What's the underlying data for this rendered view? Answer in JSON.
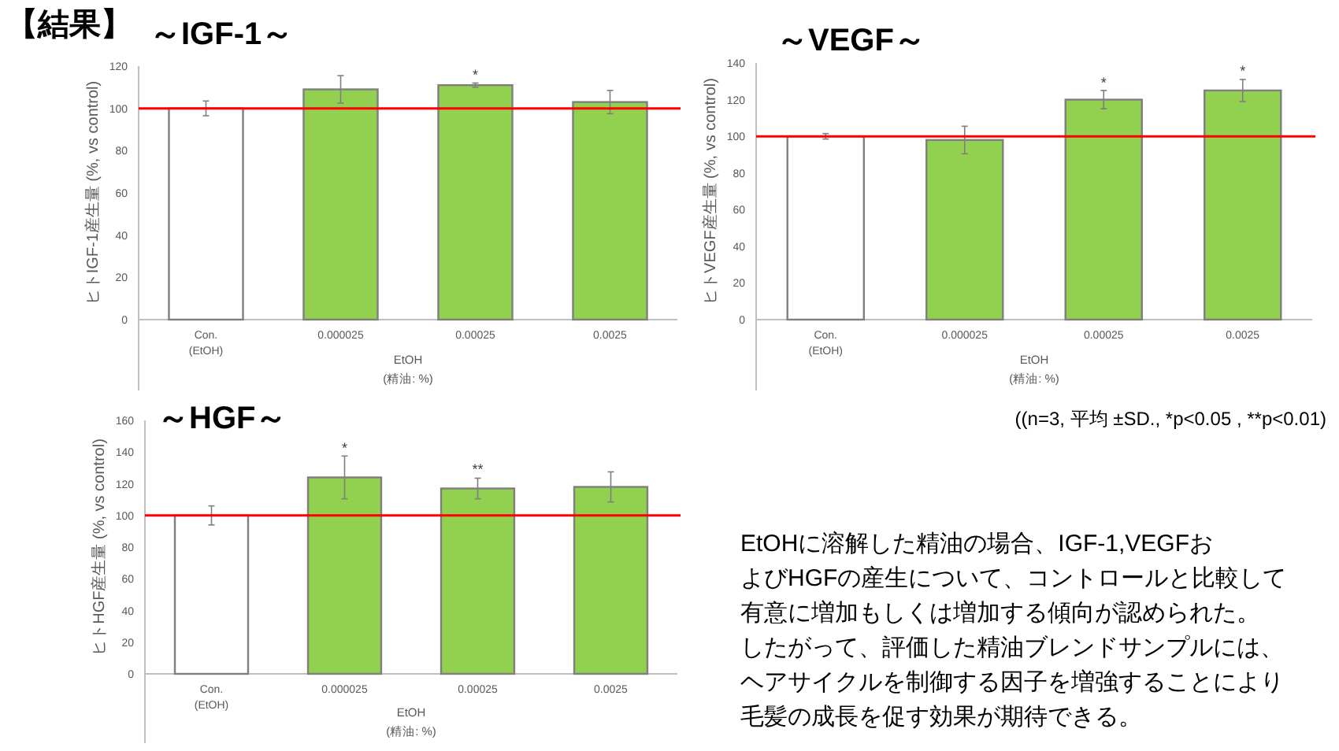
{
  "chart_data": [
    {
      "type": "bar",
      "title": "～IGF-1～",
      "ylabel": "ヒトIGF-1産生量 (%, vs control)",
      "xlabel": "EtOH\n(精油: %)",
      "categories": [
        "Con.\n(EtOH)",
        "0.000025",
        "0.00025",
        "0.0025"
      ],
      "values": [
        100,
        109,
        111,
        103
      ],
      "errors": [
        3.5,
        6.5,
        1,
        5.5
      ],
      "colors": [
        "#ffffff",
        "#92d050",
        "#92d050",
        "#92d050"
      ],
      "ylim": [
        0,
        120
      ],
      "yticks": [
        0,
        20,
        40,
        60,
        80,
        100,
        120
      ],
      "grid": false,
      "ref_lines": [
        {
          "axis": "y",
          "value": 100,
          "color": "#ff0000"
        }
      ],
      "annotations": [
        {
          "text": "*",
          "x": "0.00025",
          "y": 112
        }
      ]
    },
    {
      "type": "bar",
      "title": "～VEGF～",
      "ylabel": "ヒトVEGF産生量 (%, vs control)",
      "xlabel": "EtOH\n(精油: %)",
      "categories": [
        "Con.\n(EtOH)",
        "0.000025",
        "0.00025",
        "0.0025"
      ],
      "values": [
        100,
        98,
        120,
        125
      ],
      "errors": [
        1.5,
        7.5,
        5,
        6
      ],
      "colors": [
        "#ffffff",
        "#92d050",
        "#92d050",
        "#92d050"
      ],
      "ylim": [
        0,
        140
      ],
      "yticks": [
        0,
        20,
        40,
        60,
        80,
        100,
        120,
        140
      ],
      "grid": false,
      "ref_lines": [
        {
          "axis": "y",
          "value": 100,
          "color": "#ff0000"
        }
      ],
      "annotations": [
        {
          "text": "*",
          "x": "0.00025",
          "y": 125
        },
        {
          "text": "*",
          "x": "0.0025",
          "y": 131.5
        },
        "((n=3, 平均 ±SD., *p<0.05 , **p<0.01)"
      ]
    },
    {
      "type": "bar",
      "title": "～HGF～",
      "ylabel": "ヒトHGF産生量 (%, vs control)",
      "xlabel": "EtOH\n(精油: %)",
      "categories": [
        "Con.\n(EtOH)",
        "0.000025",
        "0.00025",
        "0.0025"
      ],
      "values": [
        100,
        124,
        117,
        118
      ],
      "errors": [
        6,
        13.5,
        6.5,
        9.5
      ],
      "colors": [
        "#ffffff",
        "#92d050",
        "#92d050",
        "#92d050"
      ],
      "ylim": [
        0,
        160
      ],
      "yticks": [
        0,
        20,
        40,
        60,
        80,
        100,
        120,
        140,
        160
      ],
      "grid": false,
      "ref_lines": [
        {
          "axis": "y",
          "value": 100,
          "color": "#ff0000"
        }
      ],
      "annotations": [
        {
          "text": "*",
          "x": "0.000025",
          "y": 137.5
        },
        {
          "text": "**",
          "x": "0.00025",
          "y": 124
        }
      ]
    },
    {
      "type": "other",
      "title": "【結果】",
      "annotations": [
        "EtOHに溶解した精油の場合、IGF-1,VEGFお",
        "よびHGFの産生について、コントロールと比較して",
        "有意に増加もしくは増加する傾向が認められた。",
        "したがって、評価した精油ブレンドサンプルには、",
        "ヘアサイクルを制御する因子を増強することにより",
        "毛髪の成長を促す効果が期待できる。"
      ]
    }
  ]
}
